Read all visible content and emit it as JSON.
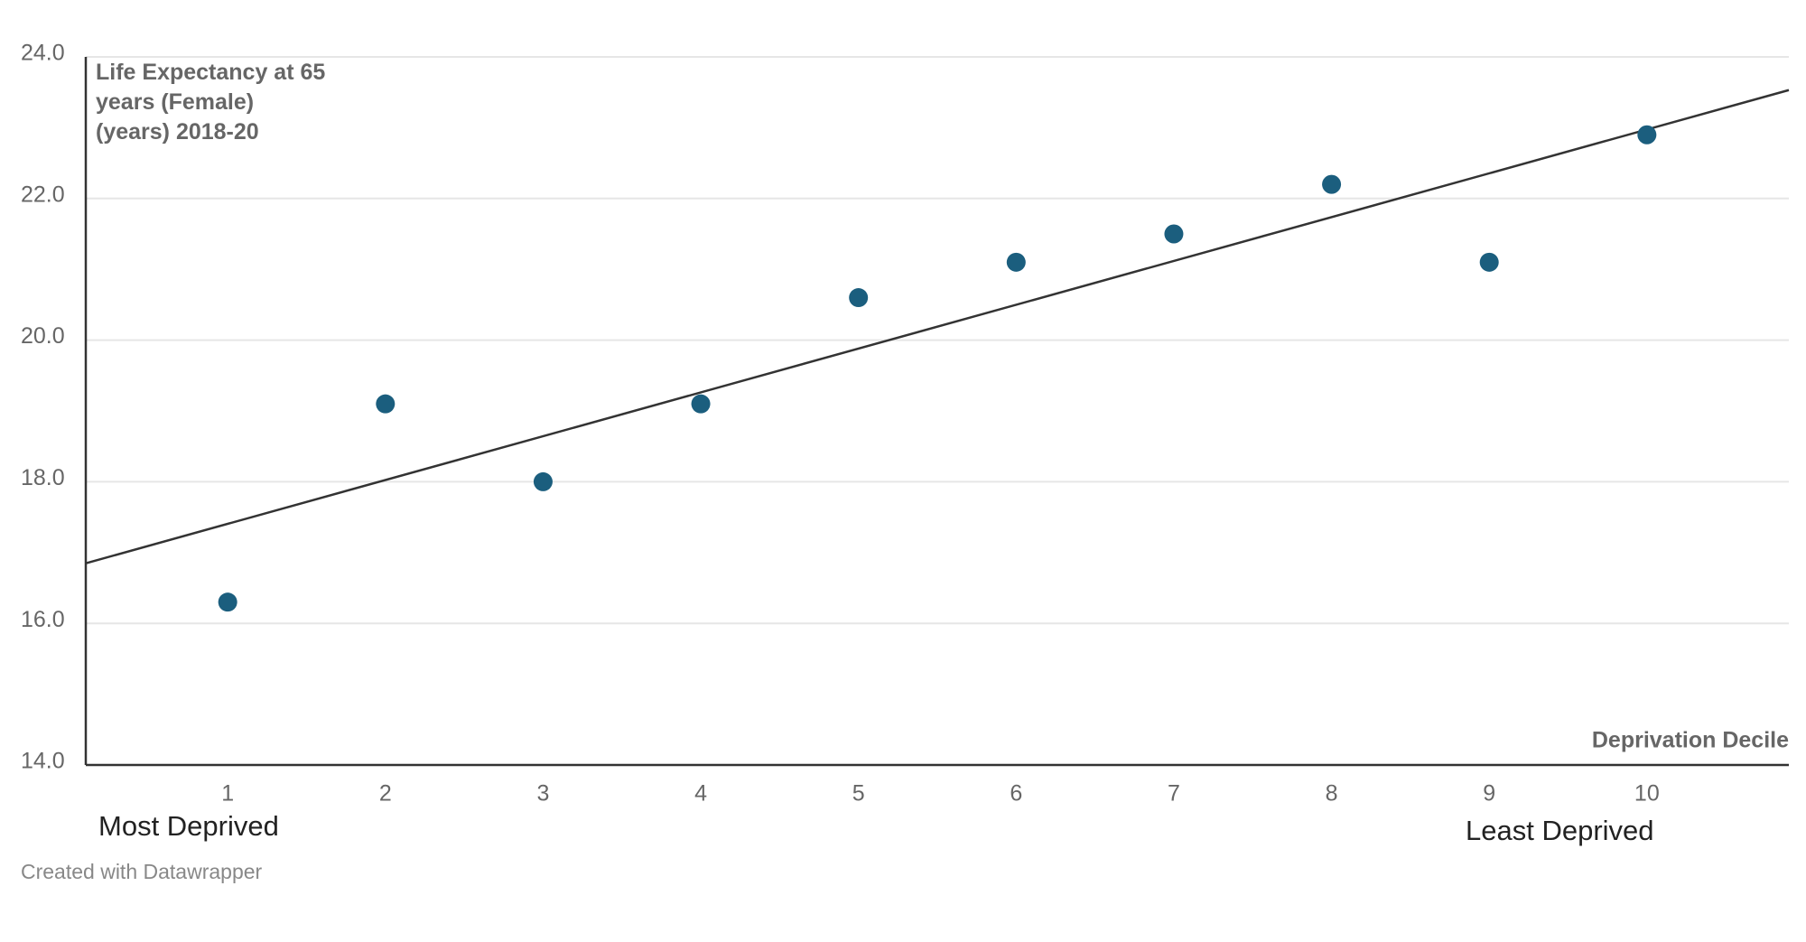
{
  "chart_data": {
    "type": "scatter",
    "y_label": "Life Expectancy at 65 years (Female) (years) 2018-20",
    "x_label": "Deprivation Decile",
    "annotations": [
      "Most Deprived",
      "Least Deprived"
    ],
    "footer": "Created with Datawrapper",
    "x": [
      1,
      2,
      3,
      4,
      5,
      6,
      7,
      8,
      9,
      10
    ],
    "y": [
      16.3,
      19.1,
      18.0,
      19.1,
      20.6,
      21.1,
      21.5,
      22.2,
      21.1,
      22.9
    ],
    "color": "#1b5e7e",
    "trendline": true,
    "xlim": [
      0.1,
      10.9
    ],
    "xticks": [
      1,
      2,
      3,
      4,
      5,
      6,
      7,
      8,
      9,
      10
    ],
    "ylim": [
      14,
      24
    ],
    "yticks": [
      {
        "value": 14,
        "label": "14.0"
      },
      {
        "value": 16,
        "label": "16.0"
      },
      {
        "value": 18,
        "label": "18.0"
      },
      {
        "value": 20,
        "label": "20.0"
      },
      {
        "value": 22,
        "label": "22.0"
      },
      {
        "value": 24,
        "label": "24.0"
      }
    ],
    "grid": true
  }
}
